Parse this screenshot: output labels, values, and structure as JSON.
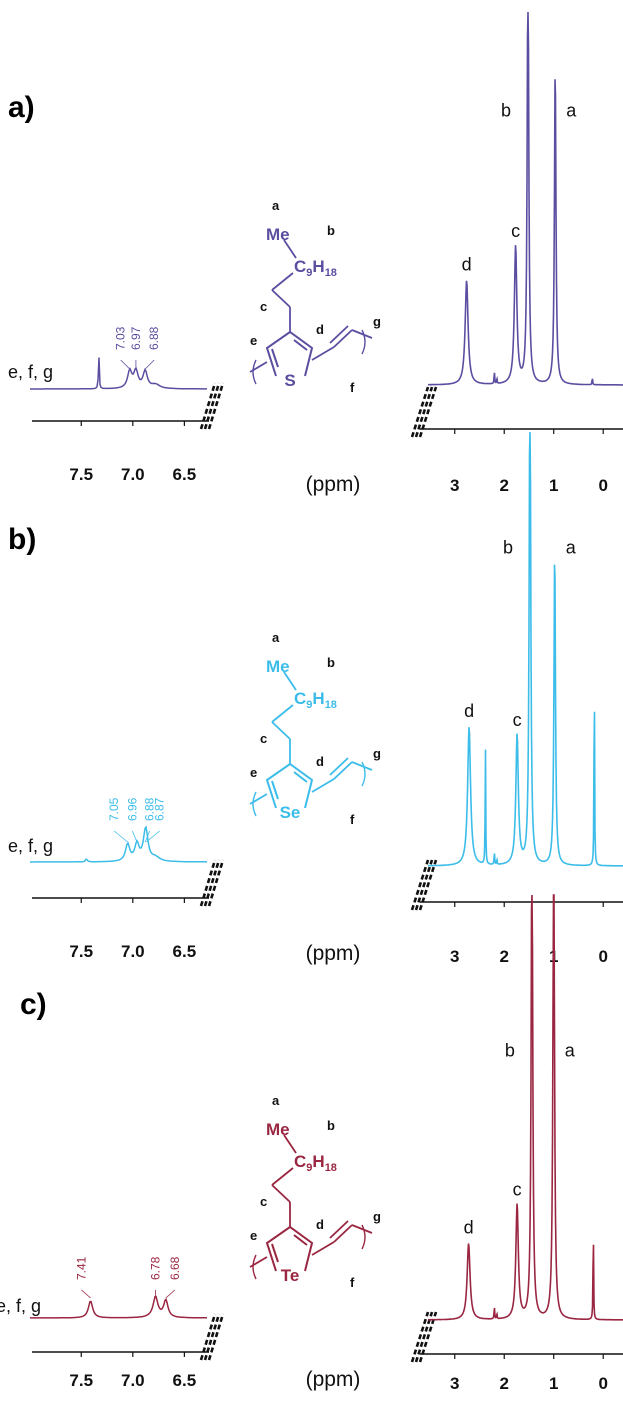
{
  "chart_data": [
    {
      "type": "line",
      "panel": "a)",
      "color": "#5b4ea0",
      "unit": "(ppm)",
      "inset": {
        "xlim": [
          7.9,
          6.3
        ],
        "ticks": [
          "7.5",
          "7.0",
          "6.5"
        ],
        "tick_values": [
          7.5,
          7.0,
          6.5
        ],
        "group_label": "e, f, g",
        "peak_labels": [
          "7.03",
          "6.97",
          "6.88"
        ],
        "peak_values": [
          7.03,
          6.97,
          6.88
        ]
      },
      "main": {
        "xlim": [
          3.5,
          -0.4
        ],
        "ticks": [
          "3",
          "2",
          "1",
          "0"
        ],
        "tick_values": [
          3,
          2,
          1,
          0
        ],
        "peaks": [
          {
            "label": "d",
            "ppm": 2.76
          },
          {
            "label": "c",
            "ppm": 1.77
          },
          {
            "label": "b",
            "ppm": 1.52
          },
          {
            "label": "a",
            "ppm": 0.97
          }
        ]
      },
      "molecule": {
        "heteroatom": "S",
        "labels": [
          "a",
          "b",
          "c",
          "d",
          "e",
          "f",
          "g"
        ],
        "me": "Me",
        "chain": "C",
        "sub1": "9",
        "h": "H",
        "sub2": "18"
      }
    },
    {
      "type": "line",
      "panel": "b)",
      "color": "#3cbde9",
      "unit": "(ppm)",
      "inset": {
        "xlim": [
          7.9,
          6.3
        ],
        "ticks": [
          "7.5",
          "7.0",
          "6.5"
        ],
        "tick_values": [
          7.5,
          7.0,
          6.5
        ],
        "group_label": "e, f, g",
        "peak_labels": [
          "7.05",
          "6.96",
          "6.88",
          "6.87"
        ],
        "peak_values": [
          7.05,
          6.96,
          6.88,
          6.87
        ]
      },
      "main": {
        "xlim": [
          3.5,
          -0.4
        ],
        "ticks": [
          "3",
          "2",
          "1",
          "0"
        ],
        "tick_values": [
          3,
          2,
          1,
          0
        ],
        "peaks": [
          {
            "label": "d",
            "ppm": 2.71
          },
          {
            "label": "c",
            "ppm": 1.74
          },
          {
            "label": "b",
            "ppm": 1.48
          },
          {
            "label": "a",
            "ppm": 0.98
          }
        ]
      },
      "molecule": {
        "heteroatom": "Se",
        "labels": [
          "a",
          "b",
          "c",
          "d",
          "e",
          "f",
          "g"
        ],
        "me": "Me",
        "chain": "C",
        "sub1": "9",
        "h": "H",
        "sub2": "18"
      }
    },
    {
      "type": "line",
      "panel": "c)",
      "color": "#9a2641",
      "unit": "(ppm)",
      "inset": {
        "xlim": [
          7.9,
          6.3
        ],
        "ticks": [
          "7.5",
          "7.0",
          "6.5"
        ],
        "tick_values": [
          7.5,
          7.0,
          6.5
        ],
        "group_label": "e, f, g",
        "peak_labels": [
          "7.41",
          "6.78",
          "6.68"
        ],
        "peak_values": [
          7.41,
          6.78,
          6.68
        ]
      },
      "main": {
        "xlim": [
          3.5,
          -0.4
        ],
        "ticks": [
          "3",
          "2",
          "1",
          "0"
        ],
        "tick_values": [
          3,
          2,
          1,
          0
        ],
        "peaks": [
          {
            "label": "d",
            "ppm": 2.72
          },
          {
            "label": "c",
            "ppm": 1.74
          },
          {
            "label": "b",
            "ppm": 1.44
          },
          {
            "label": "a",
            "ppm": 1.0
          }
        ]
      },
      "molecule": {
        "heteroatom": "Te",
        "labels": [
          "a",
          "b",
          "c",
          "d",
          "e",
          "f",
          "g"
        ],
        "me": "Me",
        "chain": "C",
        "sub1": "9",
        "h": "H",
        "sub2": "18"
      }
    }
  ]
}
